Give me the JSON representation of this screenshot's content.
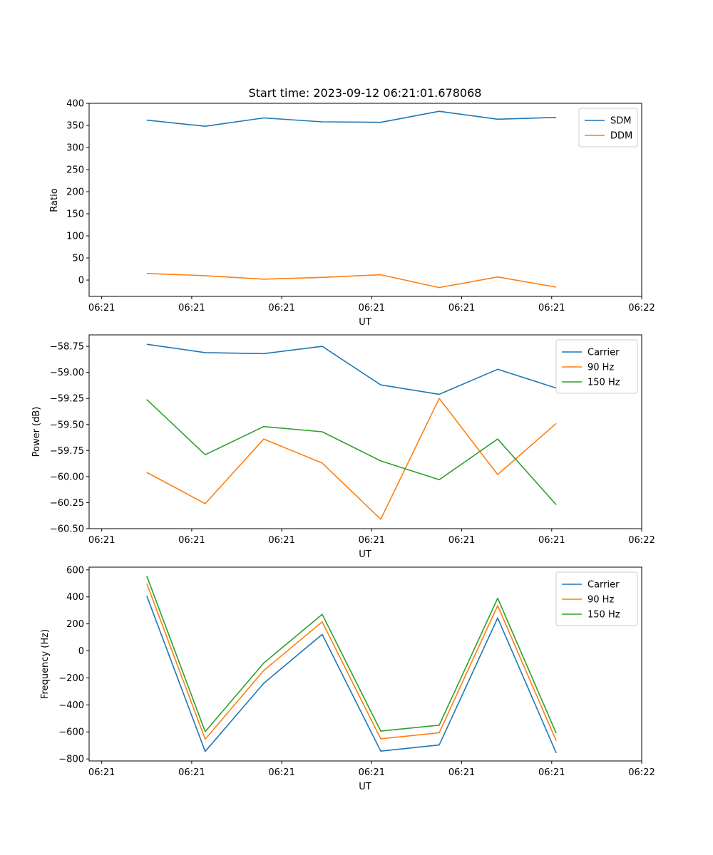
{
  "chart_data": [
    {
      "type": "line",
      "title": "Start time: 2023-09-12 06:21:01.678068",
      "xlabel": "UT",
      "ylabel": "Ratio",
      "x_ticks": [
        "06:21",
        "06:21",
        "06:21",
        "06:21",
        "06:21",
        "06:21",
        "06:22"
      ],
      "x_tick_positions": [
        0,
        1,
        2,
        3,
        4,
        5,
        6
      ],
      "xlim": [
        -0.14,
        6.0
      ],
      "x": [
        0.5,
        1.15,
        1.8,
        2.45,
        3.1,
        3.75,
        4.4,
        5.05
      ],
      "ylim": [
        -37,
        400
      ],
      "y_ticks": [
        0,
        50,
        100,
        150,
        200,
        250,
        300,
        350,
        400
      ],
      "y_tick_labels": [
        "0",
        "50",
        "100",
        "150",
        "200",
        "250",
        "300",
        "350",
        "400"
      ],
      "legend_position": "top-right",
      "series": [
        {
          "name": "SDM",
          "color": "#1f77b4",
          "values": [
            362,
            348,
            367,
            358,
            357,
            382,
            364,
            368
          ]
        },
        {
          "name": "DDM",
          "color": "#ff7f0e",
          "values": [
            15,
            10,
            2,
            6,
            12,
            -17,
            7,
            -16
          ]
        }
      ]
    },
    {
      "type": "line",
      "title": "",
      "xlabel": "UT",
      "ylabel": "Power (dB)",
      "x_ticks": [
        "06:21",
        "06:21",
        "06:21",
        "06:21",
        "06:21",
        "06:21",
        "06:22"
      ],
      "x_tick_positions": [
        0,
        1,
        2,
        3,
        4,
        5,
        6
      ],
      "xlim": [
        -0.14,
        6.0
      ],
      "x": [
        0.5,
        1.15,
        1.8,
        2.45,
        3.1,
        3.75,
        4.4,
        5.05
      ],
      "ylim": [
        -60.5,
        -58.64
      ],
      "y_ticks": [
        -60.5,
        -60.25,
        -60.0,
        -59.75,
        -59.5,
        -59.25,
        -59.0,
        -58.75
      ],
      "y_tick_labels": [
        "−60.50",
        "−60.25",
        "−60.00",
        "−59.75",
        "−59.50",
        "−59.25",
        "−59.00",
        "−58.75"
      ],
      "legend_position": "top-right",
      "series": [
        {
          "name": "Carrier",
          "color": "#1f77b4",
          "values": [
            -58.73,
            -58.81,
            -58.82,
            -58.75,
            -59.12,
            -59.21,
            -58.97,
            -59.15
          ]
        },
        {
          "name": "90 Hz",
          "color": "#ff7f0e",
          "values": [
            -59.96,
            -60.26,
            -59.64,
            -59.87,
            -60.41,
            -59.25,
            -59.98,
            -59.49
          ]
        },
        {
          "name": "150 Hz",
          "color": "#2ca02c",
          "values": [
            -59.26,
            -59.79,
            -59.52,
            -59.57,
            -59.85,
            -60.03,
            -59.64,
            -60.27
          ]
        }
      ]
    },
    {
      "type": "line",
      "title": "",
      "xlabel": "UT",
      "ylabel": "Frequency (Hz)",
      "x_ticks": [
        "06:21",
        "06:21",
        "06:21",
        "06:21",
        "06:21",
        "06:21",
        "06:22"
      ],
      "x_tick_positions": [
        0,
        1,
        2,
        3,
        4,
        5,
        6
      ],
      "xlim": [
        -0.14,
        6.0
      ],
      "x": [
        0.5,
        1.15,
        1.8,
        2.45,
        3.1,
        3.75,
        4.4,
        5.05
      ],
      "ylim": [
        -815,
        620
      ],
      "y_ticks": [
        -800,
        -600,
        -400,
        -200,
        0,
        200,
        400,
        600
      ],
      "y_tick_labels": [
        "−800",
        "−600",
        "−400",
        "−200",
        "0",
        "200",
        "400",
        "600"
      ],
      "legend_position": "top-right",
      "series": [
        {
          "name": "Carrier",
          "color": "#1f77b4",
          "values": [
            408,
            -745,
            -240,
            122,
            -742,
            -697,
            244,
            -756
          ]
        },
        {
          "name": "90 Hz",
          "color": "#ff7f0e",
          "values": [
            499,
            -654,
            -145,
            215,
            -651,
            -606,
            335,
            -665
          ]
        },
        {
          "name": "150 Hz",
          "color": "#2ca02c",
          "values": [
            555,
            -598,
            -90,
            271,
            -594,
            -550,
            390,
            -610
          ]
        }
      ]
    }
  ]
}
